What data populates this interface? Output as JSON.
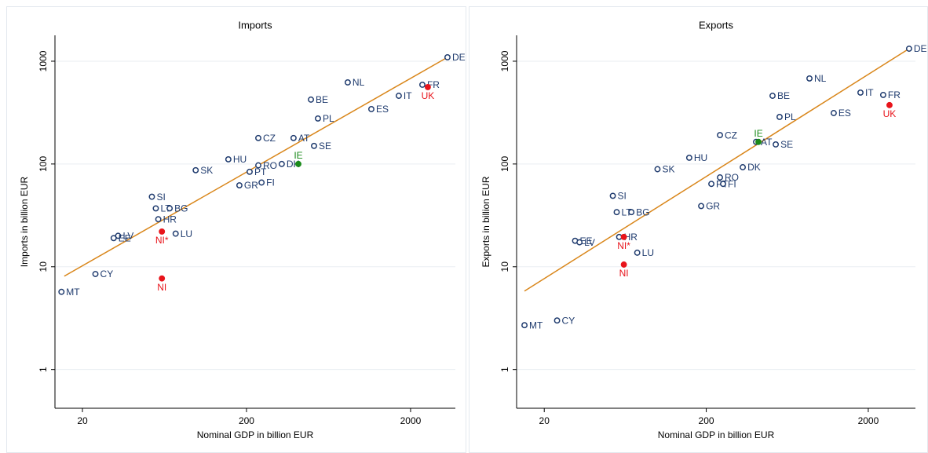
{
  "chart_data": [
    {
      "type": "scatter",
      "title": "Imports",
      "x_label": "Nominal GDP in billion EUR",
      "y_label": "Imports in billion EUR",
      "log_x": true,
      "log_y": true,
      "grid": true,
      "xlim": [
        13.6,
        3750
      ],
      "ylim": [
        0.42,
        1786
      ],
      "xticks": [
        20,
        200,
        2000
      ],
      "yticks": [
        1,
        10,
        100,
        1000
      ],
      "series": [
        {
          "color": "#1f3b6e",
          "filled": false,
          "label_position": "right",
          "labels": [
            "DE",
            "FR",
            "NL",
            "IT",
            "BE",
            "ES",
            "PL",
            "CZ",
            "AT",
            "SE",
            "HU",
            "SK",
            "RO",
            "DK",
            "PT",
            "GR",
            "FI",
            "SI",
            "LT",
            "BG",
            "HR",
            "LV",
            "EE",
            "LU",
            "CY",
            "MT"
          ],
          "x": [
            3357,
            2360,
            828,
            1695,
            494,
            1153,
            545,
            236,
            387,
            516,
            155,
            98,
            236,
            328,
            209,
            181,
            247,
            53,
            56,
            68,
            58,
            33,
            31,
            74,
            24,
            14.9
          ],
          "values": [
            1092,
            590,
            622,
            461,
            423,
            342,
            277,
            179,
            179,
            150,
            111,
            87,
            97,
            100,
            84,
            62,
            66,
            48,
            37,
            37,
            29,
            20,
            19,
            21,
            8.5,
            5.7
          ]
        },
        {
          "color": "#e8141b",
          "filled": true,
          "label_position": "below",
          "labels": [
            "UK",
            "NI*",
            "NI"
          ],
          "x": [
            2548,
            61,
            61
          ],
          "values": [
            560,
            22,
            7.7
          ]
        },
        {
          "color": "#1a8a1a",
          "filled": true,
          "label_position": "above",
          "labels": [
            "IE"
          ],
          "x": [
            414
          ],
          "values": [
            100
          ]
        }
      ],
      "trend_line": {
        "color": "#d9861a",
        "x": [
          15.5,
          3357
        ],
        "values": [
          8.1,
          1092
        ]
      }
    },
    {
      "type": "scatter",
      "title": "Exports",
      "x_label": "Nominal GDP in billion EUR",
      "y_label": "Exports in billion EUR",
      "log_x": true,
      "log_y": true,
      "grid": true,
      "xlim": [
        13.5,
        3910
      ],
      "ylim": [
        0.42,
        1786
      ],
      "xticks": [
        20,
        200,
        2000
      ],
      "yticks": [
        1,
        10,
        100,
        1000
      ],
      "series": [
        {
          "color": "#1f3b6e",
          "filled": false,
          "label_position": "right",
          "labels": [
            "DE",
            "NL",
            "IT",
            "FR",
            "BE",
            "ES",
            "PL",
            "CZ",
            "AT",
            "SE",
            "HU",
            "SK",
            "DK",
            "RO",
            "PT",
            "FI",
            "GR",
            "SI",
            "LT",
            "BG",
            "HR",
            "EE",
            "LV",
            "LU",
            "CY",
            "MT"
          ],
          "x": [
            3572,
            867,
            1790,
            2472,
            513,
            1224,
            567,
            243,
            406,
            537,
            157,
            100,
            336,
            243,
            215,
            254,
            186,
            53,
            56,
            69,
            58,
            31,
            33,
            75,
            24,
            15.1
          ],
          "values": [
            1324,
            680,
            495,
            470,
            461,
            313,
            287,
            191,
            164,
            155,
            115,
            89,
            93,
            74,
            64,
            64,
            39,
            49,
            34,
            34,
            19.5,
            17.9,
            17.3,
            13.7,
            3.0,
            2.7
          ]
        },
        {
          "color": "#e8141b",
          "filled": true,
          "label_position": "below",
          "labels": [
            "UK",
            "NI*",
            "NI"
          ],
          "x": [
            2704,
            62,
            62
          ],
          "values": [
            374,
            19.5,
            10.5
          ]
        },
        {
          "color": "#1a8a1a",
          "filled": true,
          "label_position": "above",
          "labels": [
            "IE"
          ],
          "x": [
            420
          ],
          "values": [
            164
          ]
        }
      ],
      "trend_line": {
        "color": "#d9861a",
        "x": [
          15.1,
          3572
        ],
        "values": [
          5.8,
          1324
        ]
      }
    }
  ]
}
